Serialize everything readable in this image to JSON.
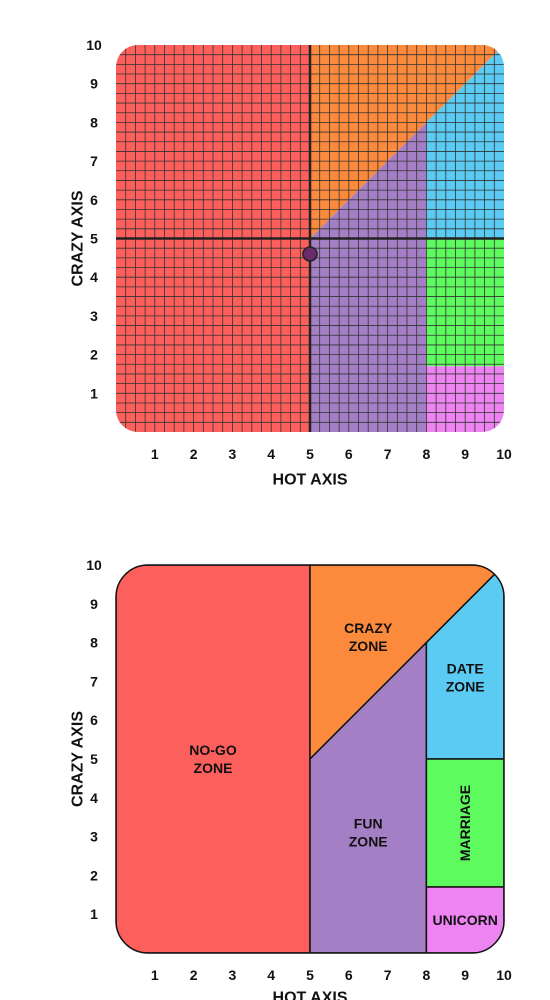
{
  "colors": {
    "nogo": "#fd605c",
    "crazy": "#fc8a3c",
    "fun": "#a57fc5",
    "date": "#5ccbf4",
    "marriage": "#5dfb5d",
    "unicorn": "#ed84f1",
    "grid": "#333333",
    "axis": "#222222",
    "point": "#6b2a6b"
  },
  "chart_data": [
    {
      "type": "scatter",
      "title": "",
      "xlabel": "HOT AXIS",
      "ylabel": "CRAZY AXIS",
      "xlim": [
        0,
        10
      ],
      "ylim": [
        0,
        10
      ],
      "xticks": [
        "1",
        "2",
        "3",
        "4",
        "5",
        "6",
        "7",
        "8",
        "9",
        "10"
      ],
      "yticks": [
        "1",
        "2",
        "3",
        "4",
        "5",
        "6",
        "7",
        "8",
        "9",
        "10"
      ],
      "grid": true,
      "grid_step": 0.25,
      "crosshair": {
        "x": 5,
        "y": 5
      },
      "points": [
        {
          "x": 5,
          "y": 4.6
        }
      ],
      "regions": [
        {
          "id": "nogo",
          "color_key": "nogo",
          "polygon": [
            [
              0,
              0
            ],
            [
              5,
              0
            ],
            [
              5,
              10
            ],
            [
              0,
              10
            ]
          ]
        },
        {
          "id": "crazy",
          "color_key": "crazy",
          "polygon": [
            [
              5,
              5
            ],
            [
              5,
              10
            ],
            [
              10,
              10
            ]
          ]
        },
        {
          "id": "fun",
          "color_key": "fun",
          "polygon": [
            [
              5,
              0
            ],
            [
              8,
              0
            ],
            [
              8,
              8
            ],
            [
              5,
              5
            ]
          ]
        },
        {
          "id": "date",
          "color_key": "date",
          "polygon": [
            [
              8,
              5
            ],
            [
              10,
              5
            ],
            [
              10,
              10
            ],
            [
              8,
              8
            ]
          ]
        },
        {
          "id": "marriage",
          "color_key": "marriage",
          "polygon": [
            [
              8,
              1.7
            ],
            [
              10,
              1.7
            ],
            [
              10,
              5
            ],
            [
              8,
              5
            ]
          ]
        },
        {
          "id": "unicorn",
          "color_key": "unicorn",
          "polygon": [
            [
              8,
              0
            ],
            [
              10,
              0
            ],
            [
              10,
              1.7
            ],
            [
              8,
              1.7
            ]
          ]
        }
      ]
    },
    {
      "type": "area",
      "title": "",
      "xlabel": "HOT AXIS",
      "ylabel": "CRAZY AXIS",
      "xlim": [
        0,
        10
      ],
      "ylim": [
        0,
        10
      ],
      "xticks": [
        "1",
        "2",
        "3",
        "4",
        "5",
        "6",
        "7",
        "8",
        "9",
        "10"
      ],
      "yticks": [
        "1",
        "2",
        "3",
        "4",
        "5",
        "6",
        "7",
        "8",
        "9",
        "10"
      ],
      "grid": false,
      "regions": [
        {
          "id": "nogo",
          "label_lines": [
            "NO-GO",
            "ZONE"
          ],
          "color_key": "nogo",
          "polygon": [
            [
              0,
              0
            ],
            [
              5,
              0
            ],
            [
              5,
              10
            ],
            [
              0,
              10
            ]
          ]
        },
        {
          "id": "crazy",
          "label_lines": [
            "CRAZY",
            "ZONE"
          ],
          "color_key": "crazy",
          "polygon": [
            [
              5,
              5
            ],
            [
              5,
              10
            ],
            [
              10,
              10
            ]
          ]
        },
        {
          "id": "fun",
          "label_lines": [
            "FUN",
            "ZONE"
          ],
          "color_key": "fun",
          "polygon": [
            [
              5,
              0
            ],
            [
              8,
              0
            ],
            [
              8,
              8
            ],
            [
              5,
              5
            ]
          ]
        },
        {
          "id": "date",
          "label_lines": [
            "DATE",
            "ZONE"
          ],
          "color_key": "date",
          "polygon": [
            [
              8,
              5
            ],
            [
              10,
              5
            ],
            [
              10,
              10
            ],
            [
              8,
              8
            ]
          ]
        },
        {
          "id": "marriage",
          "label_lines": [
            "MARRIAGE"
          ],
          "color_key": "marriage",
          "polygon": [
            [
              8,
              1.7
            ],
            [
              10,
              1.7
            ],
            [
              10,
              5
            ],
            [
              8,
              5
            ]
          ]
        },
        {
          "id": "unicorn",
          "label_lines": [
            "UNICORN"
          ],
          "color_key": "unicorn",
          "polygon": [
            [
              8,
              0
            ],
            [
              10,
              0
            ],
            [
              10,
              1.7
            ],
            [
              8,
              1.7
            ]
          ]
        }
      ]
    }
  ]
}
